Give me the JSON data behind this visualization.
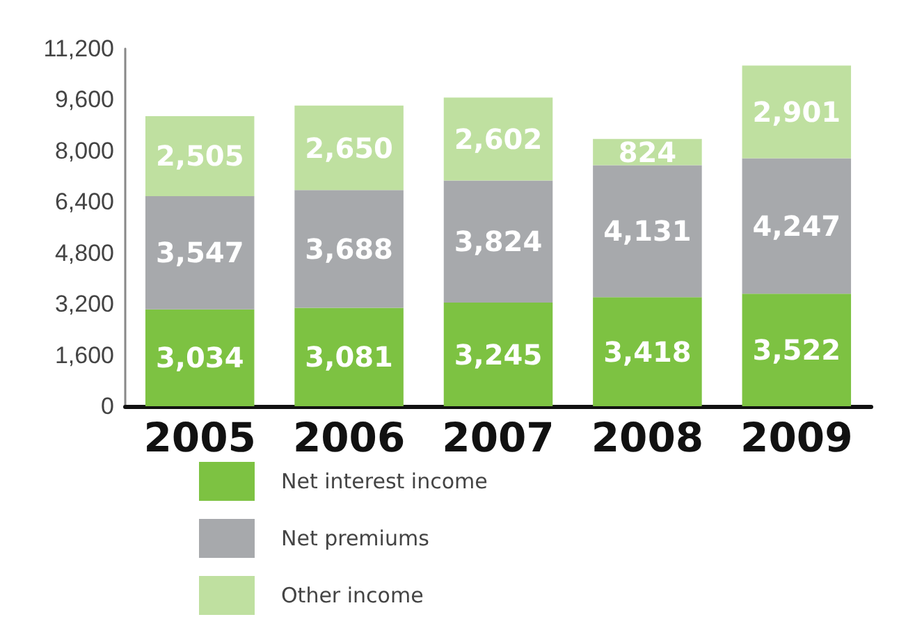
{
  "chart_data": {
    "type": "bar",
    "stacked": true,
    "categories": [
      "2005",
      "2006",
      "2007",
      "2008",
      "2009"
    ],
    "series": [
      {
        "name": "Net interest income",
        "color": "#7dc242",
        "values": [
          3034,
          3081,
          3245,
          3418,
          3522
        ],
        "value_labels": [
          "3,034",
          "3,081",
          "3,245",
          "3,418",
          "3,522"
        ]
      },
      {
        "name": "Net premiums",
        "color": "#a7a9ac",
        "values": [
          3547,
          3688,
          3824,
          4131,
          4247
        ],
        "value_labels": [
          "3,547",
          "3,688",
          "3,824",
          "4,131",
          "4,247"
        ]
      },
      {
        "name": "Other income",
        "color": "#bfe0a0",
        "values": [
          2505,
          2650,
          2602,
          824,
          2901
        ],
        "value_labels": [
          "2,505",
          "2,650",
          "2,602",
          "824",
          "2,901"
        ]
      }
    ],
    "ylim": [
      0,
      11200
    ],
    "yticks": [
      0,
      {
        "value": 1600,
        "label": "1,600"
      },
      {
        "value": 3200,
        "label": "3,200"
      },
      {
        "value": 4800,
        "label": "4,800"
      },
      {
        "value": 6400,
        "label": "6,400"
      },
      {
        "value": 8000,
        "label": "8,000"
      },
      {
        "value": 9600,
        "label": "9,600"
      },
      {
        "value": 11200,
        "label": "11,200"
      }
    ],
    "grid": false,
    "legend": "bottom"
  }
}
